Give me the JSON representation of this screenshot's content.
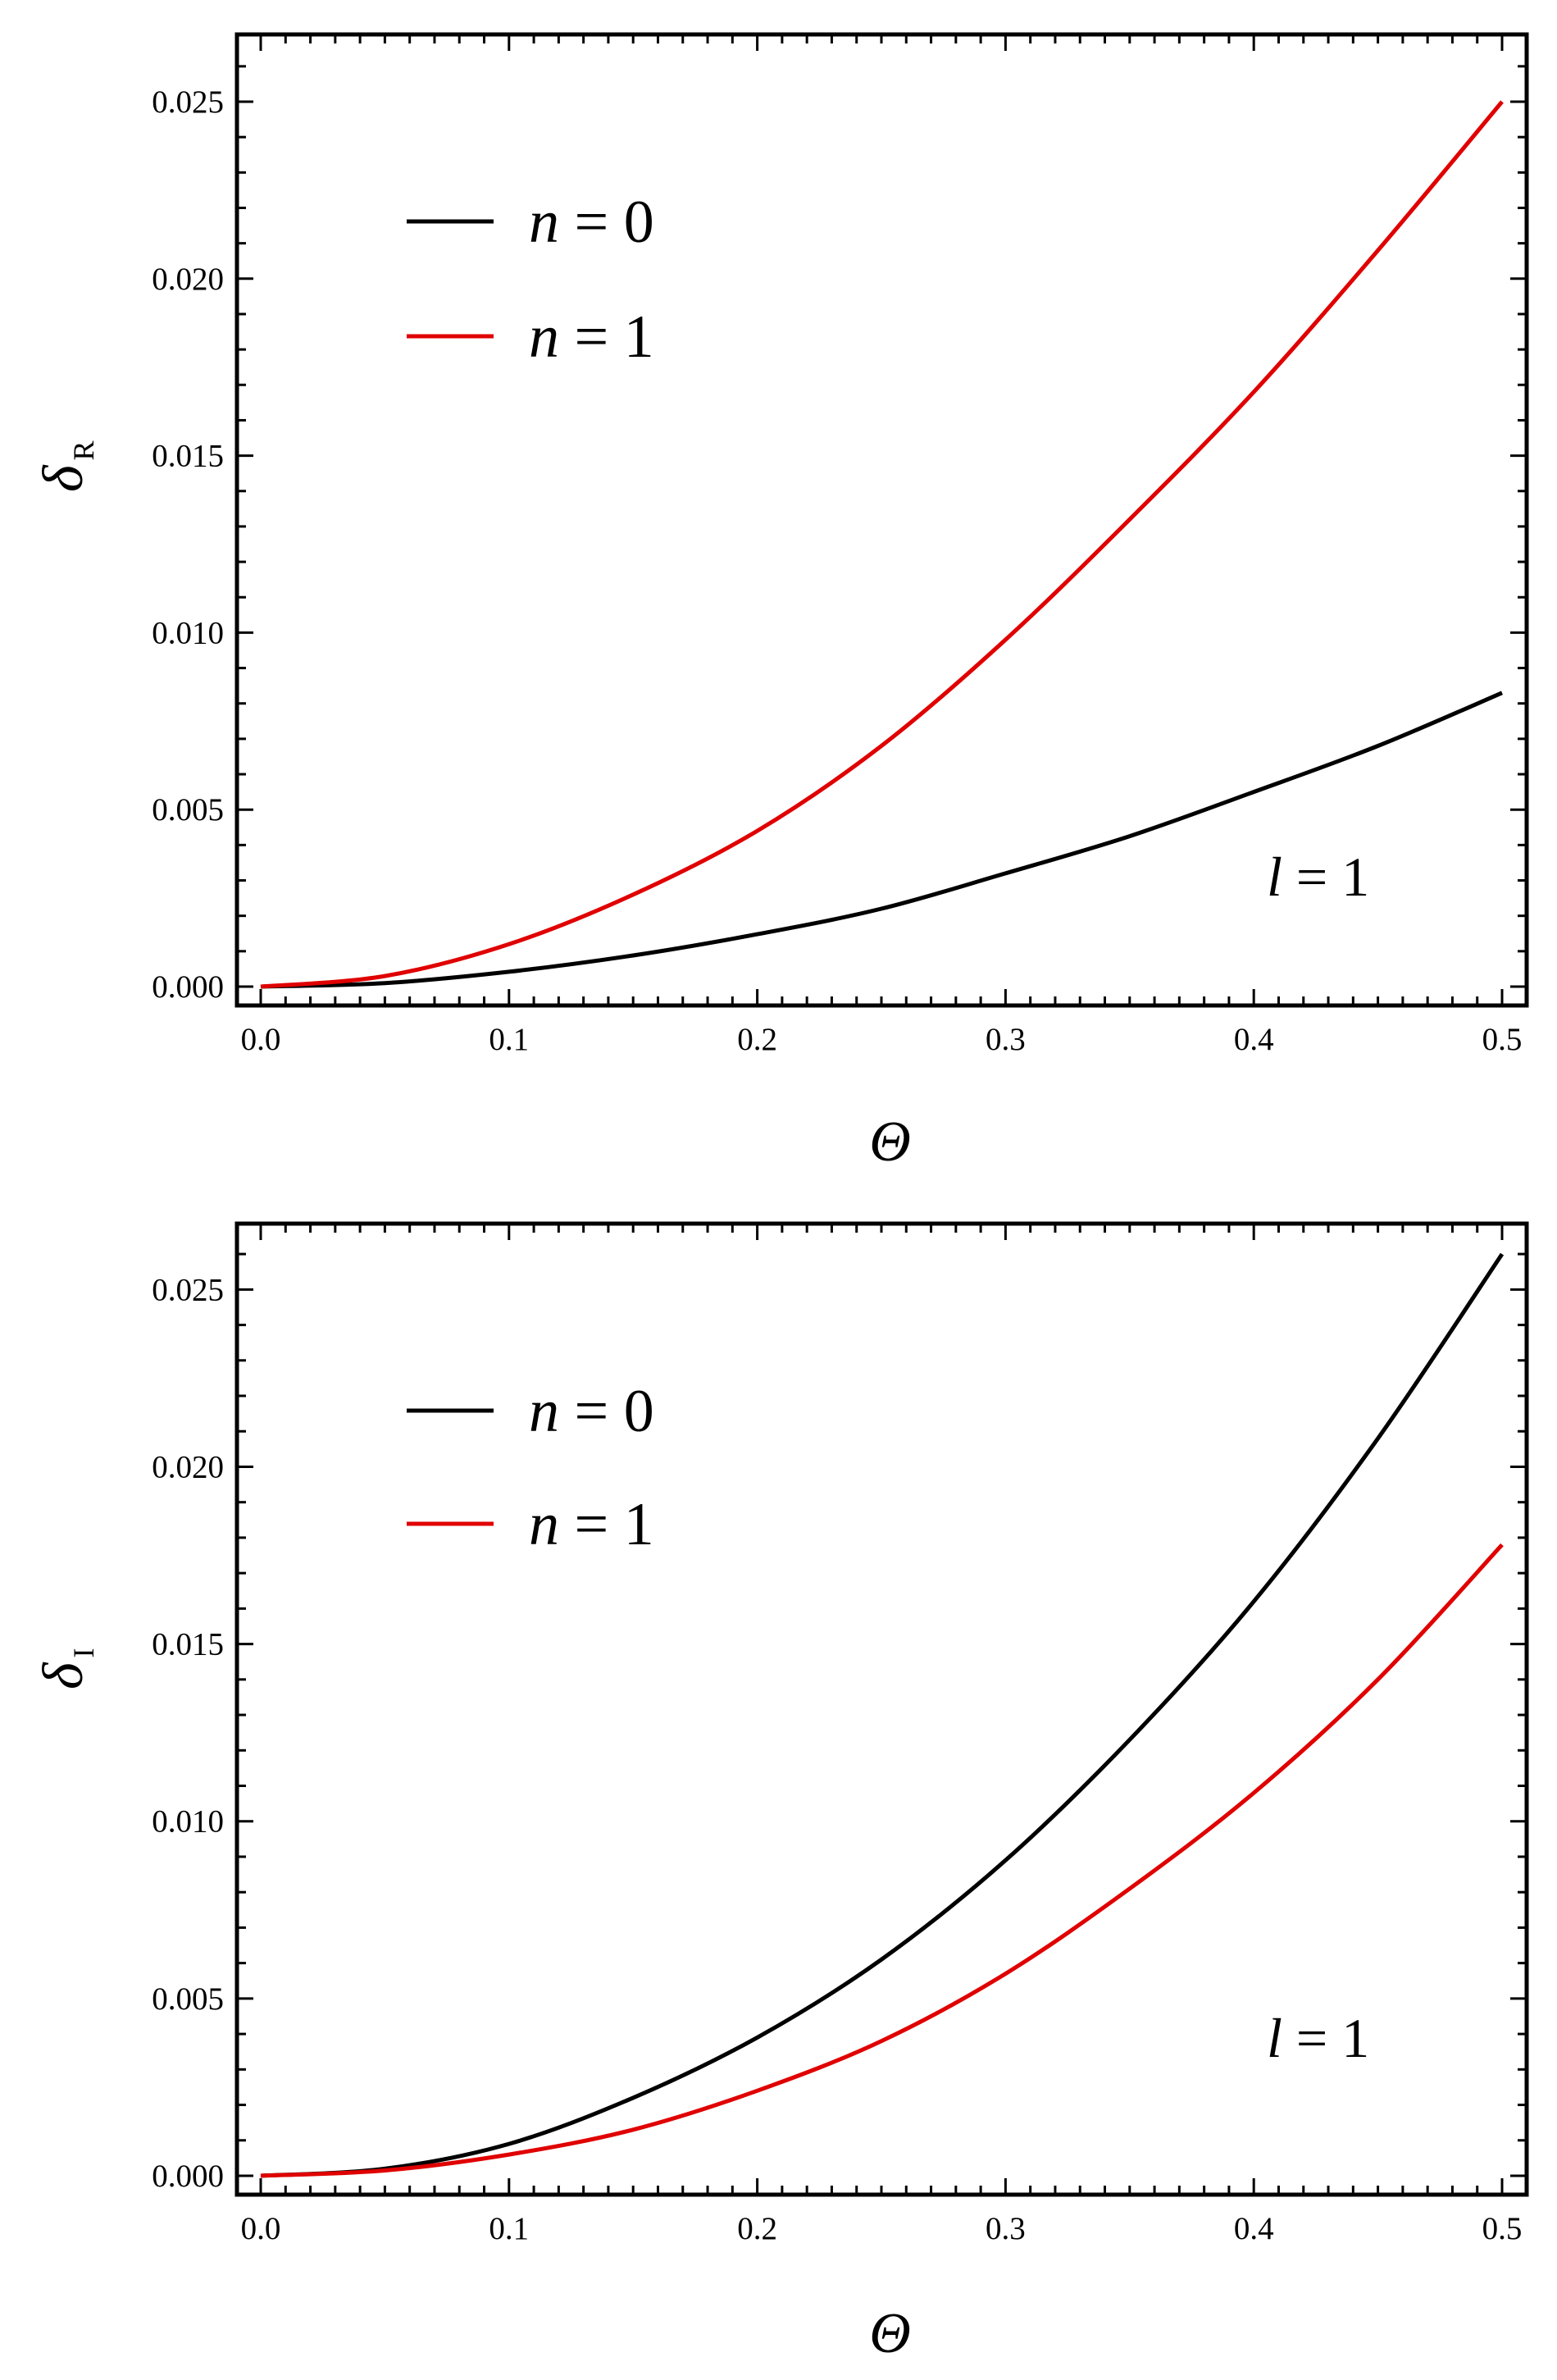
{
  "colors": {
    "n0": "#000000",
    "n1": "#e00000"
  },
  "chart_data": [
    {
      "type": "line",
      "xlabel": "Θ",
      "ylabel": "δ",
      "ylabel_sub": "R",
      "xlim": [
        0,
        0.5
      ],
      "ylim": [
        0,
        0.025
      ],
      "xticks": [
        "0.0",
        "0.1",
        "0.2",
        "0.3",
        "0.4",
        "0.5"
      ],
      "yticks": [
        "0.000",
        "0.005",
        "0.010",
        "0.015",
        "0.020",
        "0.025"
      ],
      "annotation_var": "l",
      "annotation_rest": " = 1",
      "legend_position": "top-left",
      "series": [
        {
          "name_var": "n",
          "name_rest": " = 0",
          "color": "#000000",
          "x": [
            0,
            0.05,
            0.1,
            0.15,
            0.2,
            0.25,
            0.3,
            0.35,
            0.4,
            0.45,
            0.5
          ],
          "y": [
            0,
            0.0001,
            0.00042,
            0.00088,
            0.00148,
            0.0022,
            0.0032,
            0.00425,
            0.0055,
            0.0068,
            0.0083
          ]
        },
        {
          "name_var": "n",
          "name_rest": " = 1",
          "color": "#e00000",
          "x": [
            0,
            0.05,
            0.1,
            0.15,
            0.2,
            0.25,
            0.3,
            0.35,
            0.4,
            0.45,
            0.5
          ],
          "y": [
            0,
            0.0003,
            0.0012,
            0.0026,
            0.0044,
            0.0068,
            0.0098,
            0.0132,
            0.0168,
            0.0208,
            0.025
          ]
        }
      ]
    },
    {
      "type": "line",
      "xlabel": "Θ",
      "ylabel": "δ",
      "ylabel_sub": "I",
      "xlim": [
        0,
        0.5
      ],
      "ylim": [
        0,
        0.026
      ],
      "xticks": [
        "0.0",
        "0.1",
        "0.2",
        "0.3",
        "0.4",
        "0.5"
      ],
      "yticks": [
        "0.000",
        "0.005",
        "0.010",
        "0.015",
        "0.020",
        "0.025"
      ],
      "annotation_var": "l",
      "annotation_rest": " = 1",
      "legend_position": "top-left",
      "series": [
        {
          "name_var": "n",
          "name_rest": " = 0",
          "color": "#000000",
          "x": [
            0,
            0.05,
            0.1,
            0.15,
            0.2,
            0.25,
            0.3,
            0.35,
            0.4,
            0.45,
            0.5
          ],
          "y": [
            0,
            0.0002,
            0.0009,
            0.0022,
            0.0039,
            0.0061,
            0.0089,
            0.0123,
            0.0162,
            0.0208,
            0.026
          ]
        },
        {
          "name_var": "n",
          "name_rest": " = 1",
          "color": "#e00000",
          "x": [
            0,
            0.05,
            0.1,
            0.15,
            0.2,
            0.25,
            0.3,
            0.35,
            0.4,
            0.45,
            0.5
          ],
          "y": [
            0,
            0.00015,
            0.0006,
            0.0013,
            0.0024,
            0.0038,
            0.0057,
            0.0081,
            0.0108,
            0.014,
            0.0178
          ]
        }
      ]
    }
  ]
}
